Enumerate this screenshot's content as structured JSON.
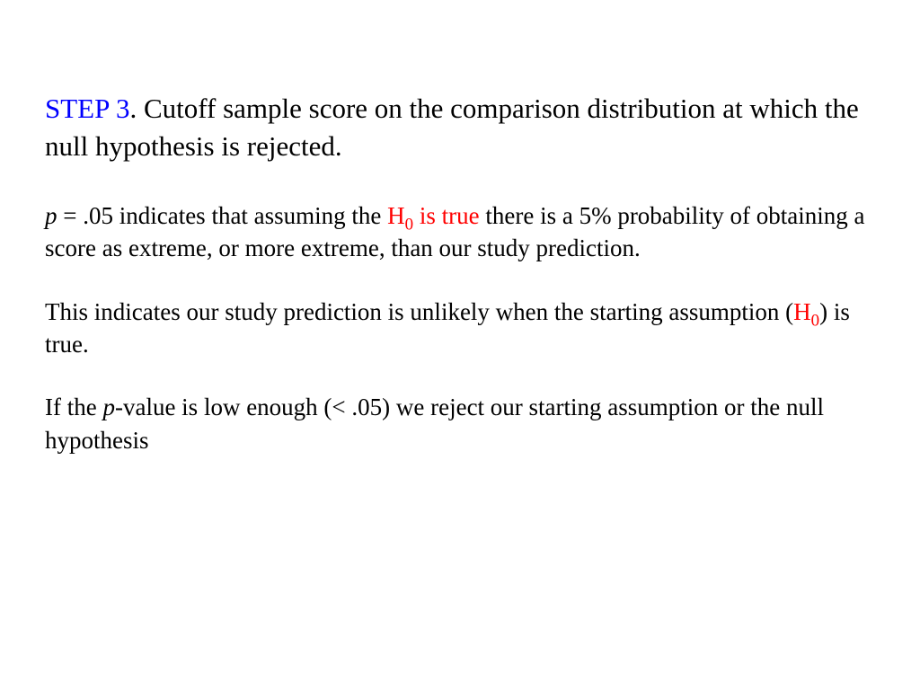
{
  "heading": {
    "step_label": "STEP 3",
    "text": ". Cutoff sample score on the comparison distribution at which the null hypothesis is rejected."
  },
  "para1": {
    "p_sym": "p",
    "pre": " = .05 indicates that assuming the ",
    "h_sym": "H",
    "h_sub": "0",
    "h_phrase": " is true",
    "post": " there is a 5% probability of obtaining a score as extreme, or more extreme, than our study prediction."
  },
  "para2": {
    "pre": "This indicates our study prediction is unlikely when the starting assumption (",
    "h_sym": "H",
    "h_sub": "0",
    "post": ") is true."
  },
  "para3": {
    "pre": "If the ",
    "p_sym": "p",
    "post": "-value is low enough (< .05) we reject our starting assumption or the null hypothesis"
  },
  "colors": {
    "step_label": "#0000ff",
    "highlight": "#ff0000",
    "text": "#000000",
    "background": "#ffffff"
  },
  "typography": {
    "font_family": "Times New Roman",
    "heading_fontsize": 31,
    "body_fontsize": 27
  }
}
